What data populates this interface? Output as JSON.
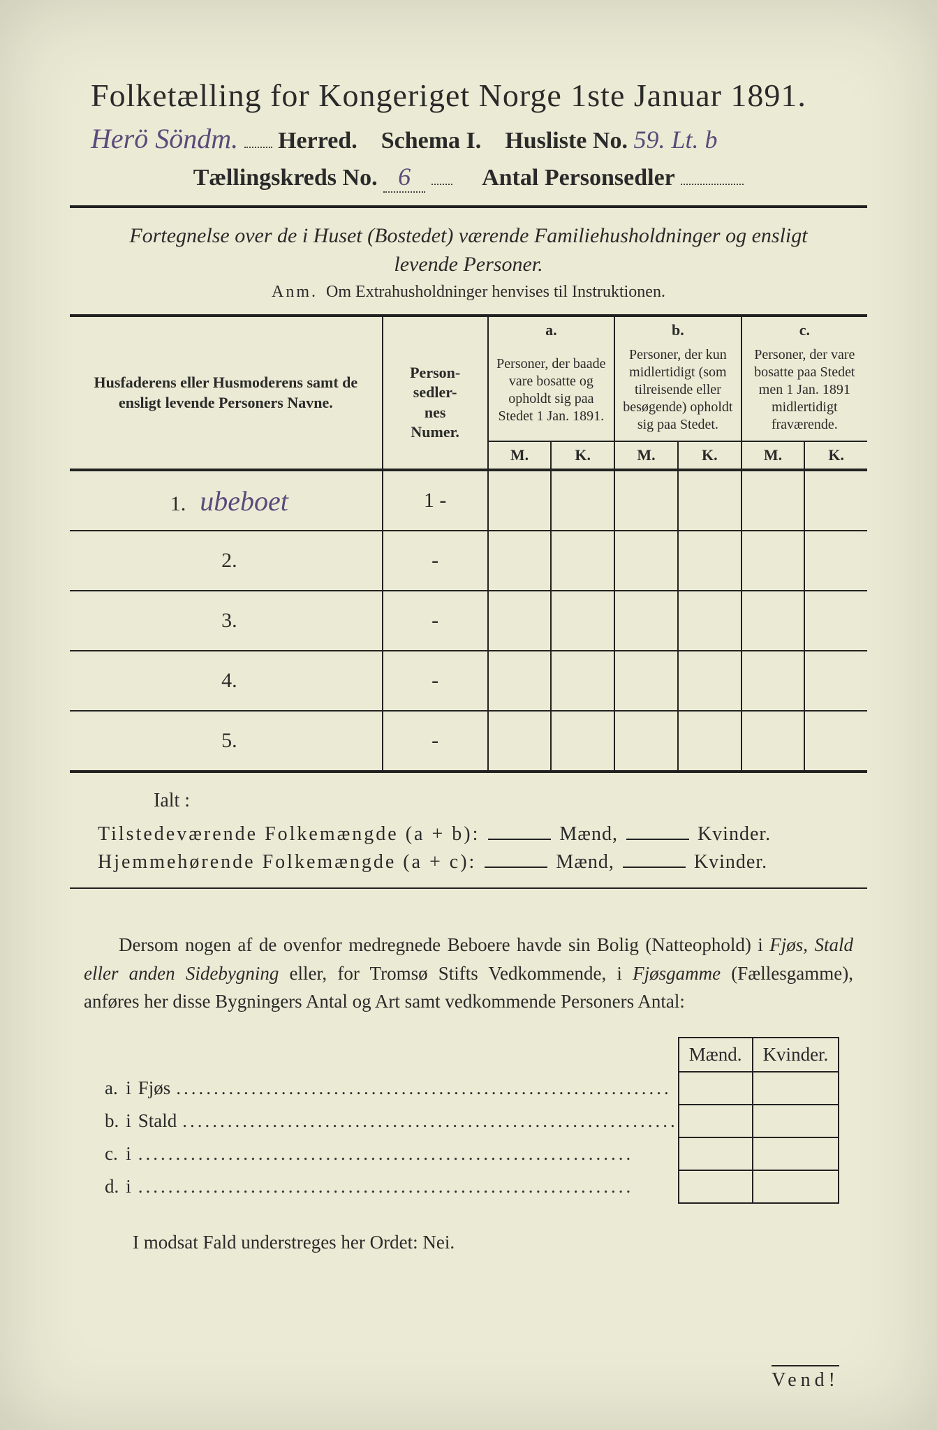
{
  "header": {
    "title": "Folketælling for Kongeriget Norge 1ste Januar 1891.",
    "herred_handwritten": "Herö Söndm.",
    "herred_label": "Herred.",
    "schema_label": "Schema I.",
    "husliste_label": "Husliste No.",
    "husliste_no": "59. Lt. b",
    "kreds_label": "Tællingskreds No.",
    "kreds_no": "6",
    "antal_label": "Antal Personsedler",
    "antal_val": ""
  },
  "subtitle": "Fortegnelse over de i Huset (Bostedet) værende Familiehusholdninger og ensligt levende Personer.",
  "anm_lead": "Anm.",
  "anm_text": "Om Extrahusholdninger henvises til Instruktionen.",
  "table": {
    "col_name_heading": "Husfaderens eller Husmoderens samt de ensligt levende Personers Navne.",
    "col_num_heading": "Person-\nsedler-\nnes\nNumer.",
    "group_a": "a.",
    "group_a_desc": "Personer, der baade vare bosatte og opholdt sig paa Stedet 1 Jan. 1891.",
    "group_b": "b.",
    "group_b_desc": "Personer, der kun midlertidigt (som tilreisende eller besøgende) opholdt sig paa Stedet.",
    "group_c": "c.",
    "group_c_desc": "Personer, der vare bosatte paa Stedet men 1 Jan. 1891 midlertidigt fraværende.",
    "m": "M.",
    "k": "K.",
    "rows": [
      {
        "n": "1.",
        "name": "ubeboet",
        "num": "1 -"
      },
      {
        "n": "2.",
        "name": "",
        "num": "-"
      },
      {
        "n": "3.",
        "name": "",
        "num": "-"
      },
      {
        "n": "4.",
        "name": "",
        "num": "-"
      },
      {
        "n": "5.",
        "name": "",
        "num": "-"
      }
    ]
  },
  "ialt": "Ialt :",
  "sum1_label": "Tilstedeværende Folkemængde (a + b):",
  "sum2_label": "Hjemmehørende Folkemængde (a + c):",
  "maend": "Mænd,",
  "kvinder": "Kvinder.",
  "paragraph": {
    "p1a": "Dersom nogen af de ovenfor medregnede Beboere havde sin Bolig (Natteophold) i ",
    "p1b": "Fjøs, Stald eller anden Sidebygning",
    "p1c": " eller, for Tromsø Stifts Vedkommende, i ",
    "p1d": "Fjøsgamme",
    "p1e": " (Fællesgamme), anføres her disse Bygningers Antal og Art samt vedkommende Personers Antal:"
  },
  "bottom": {
    "head_m": "Mænd.",
    "head_k": "Kvinder.",
    "rows": [
      {
        "key": "a.",
        "i": "i",
        "label": "Fjøs"
      },
      {
        "key": "b.",
        "i": "i",
        "label": "Stald"
      },
      {
        "key": "c.",
        "i": "i",
        "label": ""
      },
      {
        "key": "d.",
        "i": "i",
        "label": ""
      }
    ]
  },
  "closing": "I modsat Fald understreges her Ordet: Nei.",
  "vend": "Vend!",
  "style": {
    "paper_bg": "#ebebd5",
    "ink": "#2a2a2a",
    "handwriting_color": "#5b4a7a"
  }
}
